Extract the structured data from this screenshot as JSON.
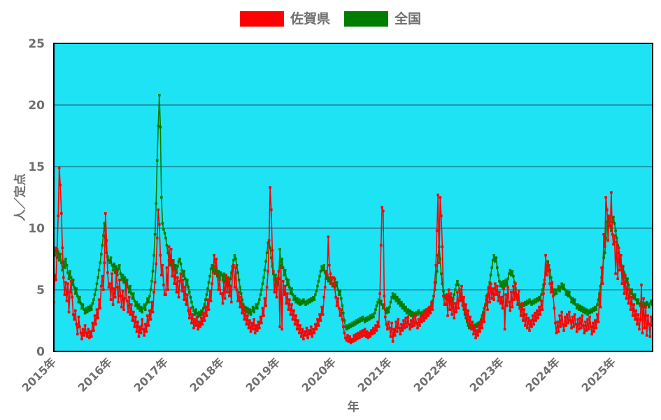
{
  "chart_data": {
    "type": "line",
    "title": "",
    "xlabel": "年",
    "ylabel": "人／定点",
    "ylim": [
      0,
      25
    ],
    "yticks": [
      0,
      5,
      10,
      15,
      20,
      25
    ],
    "xtick_labels": [
      "2015年",
      "2016年",
      "2017年",
      "2018年",
      "2019年",
      "2020年",
      "2021年",
      "2022年",
      "2023年",
      "2024年",
      "2025年"
    ],
    "x_start_year": 2015,
    "points_per_year": 52,
    "x_unit": "week",
    "grid": "horizontal-only",
    "legend_position": "top-center",
    "plot_background": "#1de3f5",
    "grid_color": "#1d6f7d",
    "text_color": "#6f6f6f",
    "series": [
      {
        "name": "佐賀県",
        "key": "saga",
        "color": "#ff0000",
        "values": [
          4.0,
          6.2,
          5.8,
          8.3,
          11.0,
          14.9,
          13.5,
          11.2,
          8.4,
          6.0,
          4.6,
          5.6,
          4.1,
          5.5,
          3.2,
          4.8,
          5.7,
          4.4,
          3.0,
          2.6,
          3.3,
          2.2,
          1.4,
          2.8,
          2.0,
          1.5,
          1.0,
          1.8,
          1.3,
          2.1,
          1.5,
          1.2,
          1.8,
          1.1,
          1.6,
          1.2,
          2.3,
          1.7,
          2.9,
          2.2,
          3.4,
          2.7,
          4.2,
          3.5,
          5.3,
          6.1,
          5.0,
          7.2,
          11.2,
          9.0,
          6.4,
          5.2,
          5.5,
          4.2,
          6.3,
          3.8,
          5.1,
          4.4,
          6.5,
          5.2,
          4.0,
          5.8,
          4.5,
          3.6,
          4.9,
          3.4,
          4.3,
          5.6,
          4.1,
          3.2,
          4.4,
          3.0,
          3.8,
          2.5,
          3.2,
          2.0,
          2.8,
          1.6,
          2.4,
          1.2,
          2.0,
          1.5,
          2.6,
          1.8,
          1.3,
          2.2,
          1.6,
          2.9,
          2.1,
          3.3,
          2.6,
          4.0,
          3.2,
          4.8,
          5.6,
          7.1,
          9.2,
          11.5,
          10.3,
          7.8,
          6.2,
          7.0,
          5.4,
          4.6,
          4.6,
          6.8,
          5.0,
          8.5,
          7.2,
          8.3,
          6.1,
          7.4,
          5.5,
          6.6,
          4.8,
          6.0,
          4.4,
          5.7,
          6.3,
          4.9,
          5.8,
          4.2,
          5.2,
          3.8,
          4.6,
          3.3,
          2.7,
          3.5,
          2.3,
          3.0,
          1.9,
          2.6,
          2.1,
          2.8,
          1.8,
          2.4,
          2.0,
          2.7,
          2.2,
          3.1,
          2.5,
          3.6,
          2.9,
          4.2,
          3.4,
          4.9,
          4.1,
          5.5,
          6.4,
          7.8,
          6.9,
          7.5,
          6.2,
          5.0,
          5.8,
          4.7,
          4.7,
          3.9,
          5.6,
          4.3,
          6.2,
          4.8,
          5.9,
          4.5,
          5.3,
          4.0,
          6.6,
          7.0,
          5.2,
          6.8,
          5.0,
          4.1,
          4.8,
          3.6,
          4.4,
          3.1,
          3.7,
          2.6,
          3.3,
          2.2,
          2.9,
          1.9,
          2.5,
          1.6,
          2.3,
          1.8,
          2.6,
          1.5,
          2.1,
          1.7,
          2.4,
          1.9,
          2.8,
          2.3,
          3.5,
          2.9,
          4.3,
          3.7,
          5.2,
          6.5,
          9.0,
          13.3,
          11.5,
          8.2,
          6.5,
          4.8,
          5.9,
          4.4,
          5.9,
          6.5,
          2.0,
          6.8,
          1.8,
          5.7,
          4.6,
          5.3,
          3.9,
          4.7,
          3.4,
          4.2,
          3.0,
          3.8,
          2.6,
          3.3,
          2.2,
          2.9,
          1.8,
          2.5,
          1.5,
          2.1,
          1.2,
          1.8,
          1.0,
          1.6,
          1.3,
          1.9,
          1.1,
          1.7,
          1.4,
          2.0,
          1.2,
          1.8,
          1.5,
          2.2,
          1.8,
          2.6,
          2.1,
          3.0,
          2.5,
          3.6,
          3.0,
          4.4,
          5.2,
          6.5,
          6.2,
          9.3,
          7.0,
          6.3,
          5.5,
          6.0,
          6.0,
          5.2,
          4.4,
          3.7,
          4.3,
          3.5,
          2.9,
          3.4,
          2.6,
          2.0,
          1.5,
          1.1,
          0.9,
          1.3,
          0.8,
          1.2,
          0.7,
          1.0,
          0.8,
          1.3,
          0.9,
          1.4,
          1.0,
          1.5,
          1.1,
          1.6,
          1.2,
          1.7,
          1.3,
          1.8,
          1.2,
          1.6,
          1.1,
          1.5,
          1.2,
          1.7,
          1.4,
          1.9,
          1.5,
          2.1,
          1.7,
          2.4,
          2.0,
          4.7,
          8.6,
          11.7,
          11.4,
          4.5,
          2.8,
          2.2,
          1.8,
          2.4,
          1.9,
          1.2,
          2.3,
          0.8,
          1.8,
          1.3,
          2.4,
          1.6,
          2.6,
          1.9,
          1.4,
          2.2,
          1.7,
          2.5,
          1.9,
          2.7,
          2.0,
          2.8,
          2.2,
          1.8,
          2.5,
          2.0,
          2.7,
          2.1,
          2.9,
          2.3,
          1.9,
          2.6,
          2.1,
          2.8,
          2.4,
          3.0,
          2.5,
          3.2,
          2.7,
          3.4,
          2.9,
          3.6,
          3.1,
          4.0,
          3.4,
          4.5,
          5.6,
          7.0,
          9.8,
          12.7,
          7.2,
          12.5,
          11.0,
          8.5,
          4.5,
          3.8,
          3.8,
          4.6,
          2.9,
          5.0,
          3.4,
          4.7,
          3.0,
          4.3,
          2.7,
          3.9,
          3.2,
          4.8,
          3.5,
          5.0,
          4.1,
          5.3,
          3.7,
          4.4,
          3.1,
          3.8,
          2.6,
          3.3,
          2.2,
          2.8,
          1.8,
          2.4,
          1.4,
          2.0,
          1.1,
          1.7,
          1.3,
          2.1,
          1.6,
          2.5,
          1.9,
          3.0,
          2.4,
          3.7,
          4.5,
          3.4,
          5.2,
          4.0,
          5.5,
          4.3,
          5.1,
          4.2,
          5.5,
          4.6,
          5.3,
          4.1,
          4.8,
          3.9,
          4.4,
          3.5,
          5.1,
          1.8,
          4.6,
          3.7,
          5.2,
          4.0,
          3.3,
          4.8,
          3.6,
          5.3,
          4.2,
          5.5,
          4.4,
          3.8,
          4.9,
          3.5,
          2.9,
          3.9,
          2.5,
          3.4,
          2.1,
          3.0,
          1.9,
          2.7,
          1.7,
          2.5,
          2.0,
          2.9,
          2.2,
          3.1,
          2.5,
          3.3,
          2.7,
          3.6,
          3.0,
          4.1,
          3.4,
          4.7,
          5.5,
          7.8,
          6.2,
          7.0,
          6.5,
          5.5,
          4.8,
          5.6,
          4.5,
          3.5,
          2.3,
          1.5,
          2.4,
          1.6,
          2.9,
          2.0,
          3.2,
          2.2,
          1.7,
          2.8,
          2.1,
          3.0,
          2.3,
          3.2,
          2.5,
          1.9,
          2.8,
          2.0,
          3.0,
          2.2,
          1.6,
          2.6,
          1.8,
          2.7,
          1.9,
          2.9,
          2.1,
          1.5,
          2.4,
          1.7,
          2.6,
          1.8,
          2.8,
          2.0,
          1.4,
          2.3,
          1.6,
          2.5,
          1.9,
          3.0,
          2.4,
          4.5,
          3.6,
          6.8,
          5.5,
          9.5,
          8.5,
          12.5,
          11.5,
          9.0,
          11.0,
          10.2,
          12.9,
          9.5,
          8.7,
          9.4,
          6.3,
          8.9,
          5.9,
          8.4,
          6.6,
          7.8,
          5.5,
          6.9,
          4.7,
          6.2,
          4.3,
          5.6,
          3.9,
          5.0,
          3.4,
          4.4,
          2.9,
          3.8,
          2.6,
          3.3,
          2.2,
          3.0,
          1.8,
          2.6,
          5.4,
          1.5,
          4.3,
          1.9,
          3.6,
          1.3,
          2.9,
          2.2,
          1.2,
          2.8,
          2.1,
          1.1
        ]
      },
      {
        "name": "全国",
        "key": "zenkoku",
        "color": "#007d00",
        "values": [
          8.2,
          7.8,
          8.4,
          7.6,
          8.1,
          7.4,
          7.9,
          7.2,
          6.6,
          7.3,
          6.8,
          7.5,
          7.0,
          6.4,
          5.9,
          6.5,
          6.0,
          5.4,
          5.8,
          5.2,
          4.7,
          5.1,
          4.5,
          4.0,
          4.4,
          3.9,
          3.5,
          3.8,
          3.4,
          3.1,
          3.5,
          3.2,
          3.6,
          3.3,
          3.7,
          3.4,
          3.9,
          4.2,
          4.6,
          5.0,
          5.5,
          6.0,
          6.6,
          7.2,
          7.9,
          8.6,
          9.4,
          10.4,
          9.2,
          8.0,
          7.7,
          7.4,
          7.2,
          7.6,
          7.0,
          6.6,
          7.1,
          6.4,
          6.9,
          6.2,
          6.7,
          7.0,
          6.3,
          5.8,
          6.2,
          5.6,
          6.0,
          5.4,
          5.8,
          5.2,
          4.8,
          5.3,
          4.7,
          4.3,
          4.7,
          4.1,
          3.7,
          4.0,
          3.5,
          3.8,
          3.3,
          3.6,
          3.2,
          3.5,
          3.8,
          3.4,
          3.9,
          4.3,
          4.0,
          4.5,
          5.0,
          5.7,
          6.5,
          7.8,
          9.5,
          12.0,
          15.5,
          18.3,
          20.8,
          18.2,
          12.5,
          10.4,
          9.9,
          9.6,
          9.2,
          8.6,
          8.0,
          7.4,
          7.0,
          7.4,
          6.8,
          7.2,
          6.6,
          7.0,
          6.4,
          6.9,
          7.3,
          7.5,
          7.1,
          6.6,
          6.1,
          6.5,
          5.9,
          5.4,
          5.8,
          5.2,
          4.8,
          4.4,
          4.0,
          3.6,
          3.3,
          3.0,
          3.4,
          3.1,
          2.8,
          3.2,
          2.9,
          3.3,
          3.0,
          3.5,
          3.8,
          4.2,
          4.6,
          5.1,
          5.6,
          6.1,
          6.7,
          7.0,
          6.5,
          6.9,
          6.3,
          6.7,
          6.1,
          6.5,
          6.0,
          6.4,
          6.2,
          5.8,
          6.3,
          5.7,
          6.1,
          5.5,
          6.0,
          5.4,
          5.9,
          6.4,
          6.9,
          7.4,
          7.8,
          7.5,
          7.0,
          6.4,
          5.8,
          5.2,
          4.7,
          4.2,
          3.8,
          3.4,
          3.6,
          3.2,
          3.5,
          3.1,
          3.4,
          3.0,
          3.3,
          3.6,
          3.2,
          3.5,
          3.8,
          3.5,
          3.9,
          4.2,
          4.6,
          5.0,
          5.5,
          6.0,
          6.6,
          7.3,
          8.0,
          8.8,
          9.0,
          8.4,
          7.6,
          6.9,
          6.3,
          5.8,
          6.2,
          5.6,
          5.4,
          5.9,
          8.3,
          7.0,
          7.5,
          6.8,
          6.2,
          6.6,
          5.9,
          5.4,
          5.8,
          5.2,
          4.7,
          5.1,
          4.6,
          4.2,
          4.5,
          4.0,
          4.3,
          3.9,
          4.2,
          3.8,
          4.1,
          3.9,
          4.2,
          4.0,
          3.8,
          4.1,
          3.9,
          4.2,
          4.0,
          4.3,
          4.1,
          4.4,
          4.2,
          4.6,
          4.9,
          5.3,
          5.7,
          6.1,
          6.5,
          6.9,
          6.6,
          7.0,
          6.4,
          5.9,
          6.2,
          5.7,
          6.0,
          5.5,
          5.8,
          5.3,
          5.5,
          5.9,
          5.3,
          5.6,
          5.0,
          4.6,
          4.9,
          4.3,
          3.7,
          3.1,
          2.5,
          2.0,
          1.8,
          2.1,
          1.9,
          2.2,
          2.0,
          2.3,
          2.1,
          2.4,
          2.2,
          2.5,
          2.3,
          2.6,
          2.4,
          2.7,
          2.5,
          2.8,
          2.6,
          2.4,
          2.7,
          2.5,
          2.8,
          2.6,
          2.9,
          2.7,
          3.0,
          2.8,
          3.1,
          3.4,
          3.7,
          4.0,
          4.2,
          3.9,
          4.1,
          3.8,
          3.5,
          3.8,
          3.4,
          3.1,
          3.5,
          3.2,
          3.6,
          4.0,
          4.4,
          4.7,
          4.3,
          4.6,
          4.1,
          4.4,
          3.9,
          4.2,
          3.7,
          4.0,
          3.5,
          3.8,
          3.3,
          3.6,
          3.1,
          3.4,
          3.0,
          3.3,
          2.9,
          3.2,
          2.8,
          3.1,
          2.9,
          3.2,
          3.0,
          3.3,
          3.1,
          2.9,
          3.2,
          3.0,
          3.3,
          3.1,
          3.4,
          3.2,
          3.5,
          3.3,
          3.6,
          3.8,
          4.1,
          4.5,
          5.0,
          5.6,
          6.5,
          7.8,
          8.5,
          7.5,
          6.3,
          5.5,
          4.9,
          4.5,
          4.3,
          4.6,
          4.2,
          4.5,
          4.1,
          4.4,
          4.0,
          4.3,
          4.6,
          5.0,
          5.4,
          5.7,
          5.4,
          5.0,
          4.6,
          4.2,
          3.8,
          3.4,
          3.0,
          2.7,
          2.4,
          2.1,
          1.9,
          2.2,
          2.0,
          1.8,
          2.1,
          1.9,
          2.2,
          2.0,
          2.3,
          2.1,
          2.4,
          2.6,
          2.9,
          3.2,
          3.5,
          3.8,
          4.2,
          4.6,
          5.1,
          5.6,
          6.2,
          6.8,
          7.4,
          7.8,
          7.3,
          7.6,
          6.8,
          6.2,
          5.7,
          5.3,
          5.6,
          5.2,
          5.7,
          5.3,
          5.8,
          5.4,
          5.9,
          6.3,
          6.6,
          6.2,
          6.5,
          6.1,
          5.6,
          5.1,
          4.6,
          4.2,
          3.8,
          3.5,
          3.8,
          3.6,
          3.9,
          3.7,
          4.0,
          3.8,
          4.1,
          3.9,
          4.2,
          4.0,
          3.8,
          4.1,
          3.9,
          4.2,
          4.0,
          4.3,
          4.1,
          4.4,
          4.2,
          4.6,
          5.0,
          5.4,
          5.8,
          6.3,
          6.8,
          7.3,
          7.0,
          6.6,
          6.0,
          5.5,
          5.0,
          4.6,
          5.0,
          4.7,
          5.0,
          5.3,
          4.9,
          5.2,
          5.5,
          5.1,
          5.4,
          5.0,
          4.6,
          4.9,
          4.5,
          4.8,
          4.4,
          4.0,
          4.3,
          3.9,
          4.2,
          3.8,
          3.5,
          3.8,
          3.4,
          3.7,
          3.3,
          3.6,
          3.2,
          3.5,
          3.1,
          3.4,
          3.0,
          3.3,
          3.1,
          3.4,
          3.2,
          3.5,
          3.3,
          3.6,
          3.4,
          3.8,
          4.2,
          4.7,
          5.3,
          6.0,
          6.8,
          7.6,
          8.0,
          9.2,
          10.5,
          11.0,
          10.7,
          10.2,
          9.8,
          10.5,
          10.9,
          10.4,
          9.8,
          9.2,
          8.6,
          8.0,
          7.5,
          7.0,
          6.6,
          6.9,
          6.4,
          6.0,
          5.6,
          5.9,
          5.4,
          5.0,
          4.7,
          5.0,
          4.6,
          4.3,
          4.6,
          4.2,
          3.9,
          4.2,
          3.9,
          3.7,
          4.0,
          3.8,
          3.6,
          3.9,
          3.7,
          4.0,
          3.8,
          3.6,
          3.9,
          4.1,
          3.8,
          4.0
        ]
      }
    ]
  }
}
